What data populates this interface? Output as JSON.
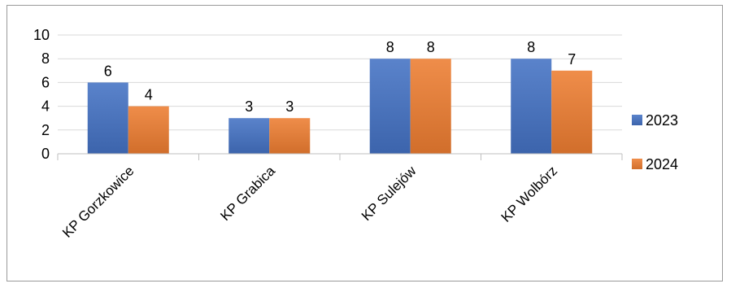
{
  "chart_data": {
    "type": "bar",
    "title": "",
    "xlabel": "",
    "ylabel": "",
    "categories": [
      "KP Gorzkowice",
      "KP Grabica",
      "KP Sulejów",
      "KP Wolbórz"
    ],
    "series": [
      {
        "name": "2023",
        "values": [
          6,
          3,
          8,
          8
        ],
        "color": "#4472C4"
      },
      {
        "name": "2024",
        "values": [
          4,
          3,
          8,
          7
        ],
        "color": "#ED7D31"
      }
    ],
    "ylim": [
      0,
      10
    ],
    "yticks": [
      "0",
      "2",
      "4",
      "6",
      "8",
      "10"
    ],
    "grid": true,
    "data_labels": true,
    "legend_position": "right"
  }
}
